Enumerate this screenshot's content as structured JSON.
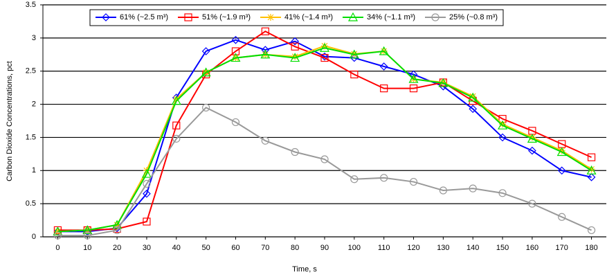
{
  "chart_data": {
    "type": "line",
    "x_label": "Time, s",
    "y_label": "Carbon Dioxide Concentrations, pct",
    "x": [
      0,
      10,
      20,
      30,
      40,
      50,
      60,
      70,
      80,
      90,
      100,
      110,
      120,
      130,
      140,
      150,
      160,
      170,
      180
    ],
    "xlim": [
      -5,
      185
    ],
    "xticks": [
      0,
      10,
      20,
      30,
      40,
      50,
      60,
      70,
      80,
      90,
      100,
      110,
      120,
      130,
      140,
      150,
      160,
      170,
      180
    ],
    "ylim": [
      0,
      3.5
    ],
    "yticks": [
      0,
      0.5,
      1,
      1.5,
      2,
      2.5,
      3,
      3.5
    ],
    "grid": true,
    "legend": "top",
    "series": [
      {
        "name": "61% (~2.5 m³)",
        "color": "#0000ff",
        "marker": "diamond",
        "values": [
          0.08,
          0.08,
          0.13,
          0.65,
          2.1,
          2.8,
          2.97,
          2.82,
          2.95,
          2.72,
          2.7,
          2.57,
          2.45,
          2.27,
          1.93,
          1.5,
          1.3,
          1.0,
          0.9
        ]
      },
      {
        "name": "51% (~1.9 m³)",
        "color": "#ff0000",
        "marker": "square",
        "values": [
          0.1,
          0.1,
          0.12,
          0.23,
          1.68,
          2.45,
          2.8,
          3.1,
          2.87,
          2.7,
          2.45,
          2.24,
          2.24,
          2.33,
          2.05,
          1.78,
          1.6,
          1.4,
          1.2
        ]
      },
      {
        "name": "41% (~1.4 m³)",
        "color": "#ffc000",
        "marker": "star",
        "values": [
          0.08,
          0.1,
          0.18,
          1.0,
          2.08,
          2.48,
          2.7,
          2.75,
          2.72,
          2.88,
          2.76,
          2.8,
          2.38,
          2.33,
          2.12,
          1.7,
          1.5,
          1.3,
          1.02
        ]
      },
      {
        "name": "34% (~1.1 m³)",
        "color": "#00dd00",
        "marker": "triangle",
        "values": [
          0.08,
          0.1,
          0.18,
          0.95,
          2.05,
          2.48,
          2.7,
          2.75,
          2.7,
          2.85,
          2.75,
          2.8,
          2.38,
          2.32,
          2.1,
          1.68,
          1.48,
          1.28,
          1.0
        ]
      },
      {
        "name": "25% (~0.8 m³)",
        "color": "#999999",
        "marker": "circle",
        "values": [
          0.02,
          0.02,
          0.1,
          0.8,
          1.48,
          1.95,
          1.73,
          1.45,
          1.28,
          1.17,
          0.87,
          0.89,
          0.83,
          0.7,
          0.73,
          0.66,
          0.5,
          0.3,
          0.1
        ]
      }
    ]
  }
}
